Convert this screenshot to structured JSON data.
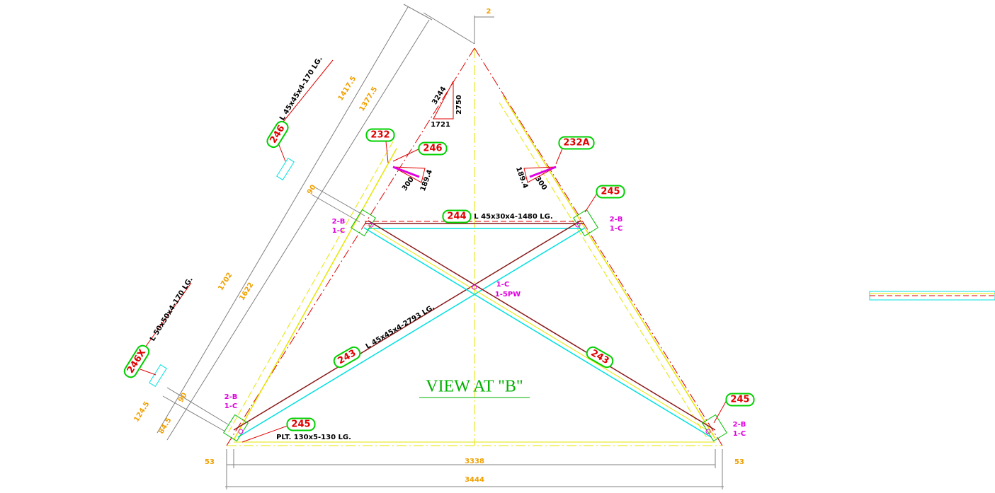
{
  "view_title": "VIEW AT \"B\"",
  "tags": [
    "246",
    "232",
    "246",
    "232A",
    "245",
    "244",
    "246X",
    "243",
    "243",
    "245",
    "245"
  ],
  "notes": [
    "L 45x45x4-170 LG.",
    "L 45x30x4-1480 LG.",
    "L 50x50x4-170 LG.",
    "L 45x45x4-2793 LG.",
    "PLT. 130x5-130 LG."
  ],
  "dimensions": [
    "2",
    "1417.5",
    "1377.5",
    "3244",
    "2750",
    "1721",
    "300",
    "189.4",
    "189.4",
    "300",
    "90",
    "1702",
    "1622",
    "124.5",
    "84.5",
    "90",
    "53",
    "3338",
    "53",
    "3444"
  ],
  "connections": [
    "2-B",
    "1-C",
    "2-B",
    "1-C",
    "1-C",
    "1-5PW",
    "2-B",
    "1-C",
    "2-B",
    "1-C"
  ]
}
